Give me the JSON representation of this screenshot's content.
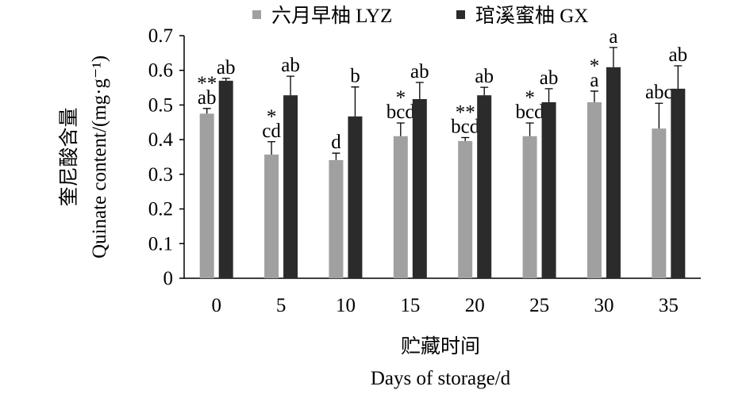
{
  "chart_data": {
    "type": "bar",
    "y_title": [
      "奎尼酸含量",
      "Quinate content/(mg·g⁻¹)"
    ],
    "x_title": [
      "贮藏时间",
      "Days of storage/d"
    ],
    "categories": [
      "0",
      "5",
      "10",
      "15",
      "20",
      "25",
      "30",
      "35"
    ],
    "series": [
      {
        "name": "六月早柚 LYZ",
        "color": "#a0a0a0",
        "values": [
          0.475,
          0.357,
          0.341,
          0.41,
          0.396,
          0.41,
          0.508,
          0.432
        ],
        "errors": [
          0.015,
          0.037,
          0.02,
          0.038,
          0.01,
          0.038,
          0.032,
          0.073
        ],
        "letters": [
          "ab",
          "cd",
          "d",
          "bcd",
          "bcd",
          "bcd",
          "a",
          "abc"
        ],
        "stars": [
          "**",
          "*",
          null,
          "*",
          "**",
          "*",
          "*",
          null
        ]
      },
      {
        "name": "琯溪蜜柚 GX",
        "color": "#2b2b2b",
        "values": [
          0.57,
          0.528,
          0.467,
          0.517,
          0.528,
          0.508,
          0.609,
          0.547
        ],
        "errors": [
          0.007,
          0.055,
          0.085,
          0.048,
          0.023,
          0.039,
          0.057,
          0.066
        ],
        "letters": [
          "ab",
          "ab",
          "b",
          "ab",
          "ab",
          "ab",
          "a",
          "ab"
        ]
      }
    ],
    "ylim": [
      0,
      0.7
    ],
    "yticks": [
      0,
      0.1,
      0.2,
      0.3,
      0.4,
      0.5,
      0.6,
      0.7
    ]
  }
}
